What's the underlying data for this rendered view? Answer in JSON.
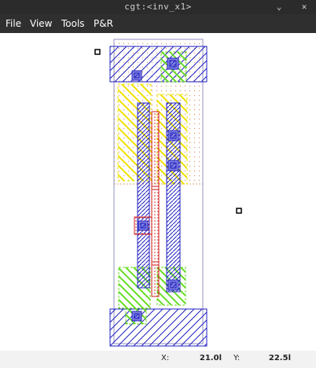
{
  "window": {
    "title": "cgt:<inv_x1>",
    "minimize_glyph": "⌄",
    "close_glyph": "✕"
  },
  "menu": {
    "items": [
      "File",
      "View",
      "Tools",
      "P&R"
    ]
  },
  "status": {
    "x_label": "X:",
    "x_value": "21.0l",
    "y_label": "Y:",
    "y_value": "22.5l"
  },
  "colors": {
    "titlebar_bg": "#2b2b2b",
    "menubar_bg": "#2f2f2f",
    "metal_blue": "#2020c0",
    "poly_red": "#d02020",
    "diffusion_green": "#66dd22",
    "pselect_yellow": "#f0e000",
    "nwell_dots": "#d8a080"
  }
}
